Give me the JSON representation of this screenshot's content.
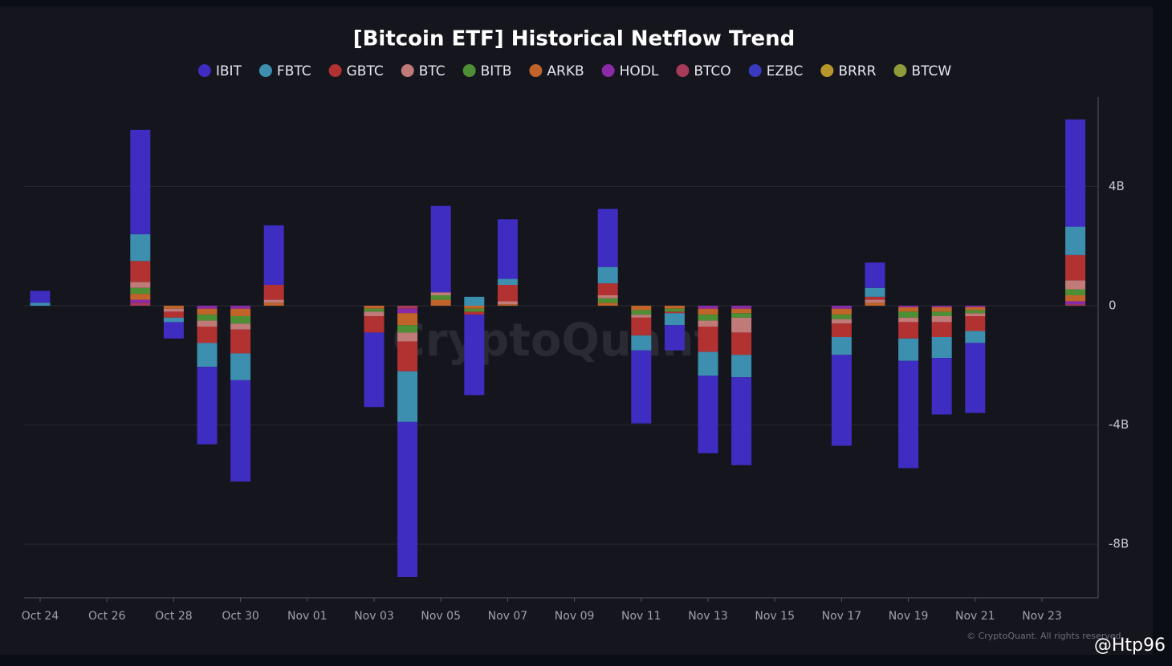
{
  "chart_data": {
    "type": "stacked-bar",
    "title": "[Bitcoin ETF] Historical Netflow Trend",
    "categories": [
      "Oct 24",
      null,
      "Oct 26",
      null,
      "Oct 28",
      null,
      "Oct 30",
      null,
      "Nov 01",
      null,
      "Nov 03",
      null,
      "Nov 05",
      null,
      "Nov 07",
      null,
      "Nov 09",
      null,
      "Nov 11",
      null,
      "Nov 13",
      null,
      "Nov 15",
      null,
      "Nov 17",
      null,
      "Nov 19",
      null,
      "Nov 21",
      null,
      "Nov 23",
      null
    ],
    "series": [
      {
        "name": "IBIT",
        "color": "#3f2cc0",
        "values": [
          0.4,
          null,
          null,
          3.5,
          -0.55,
          -2.6,
          -3.4,
          2.0,
          null,
          null,
          -2.5,
          -5.2,
          2.9,
          -2.7,
          2.0,
          null,
          null,
          1.95,
          -2.45,
          -0.85,
          -2.6,
          -2.95,
          null,
          null,
          -3.05,
          0.85,
          -3.6,
          -1.9,
          -2.35,
          null,
          null,
          3.6
        ]
      },
      {
        "name": "FBTC",
        "color": "#3d8fb0",
        "values": [
          0.1,
          null,
          null,
          0.9,
          -0.15,
          -0.8,
          -0.9,
          0,
          null,
          null,
          0,
          -1.7,
          0,
          0.3,
          0.2,
          null,
          null,
          0.55,
          -0.5,
          -0.4,
          -0.8,
          -0.75,
          null,
          null,
          -0.6,
          0.3,
          -0.75,
          -0.7,
          -0.4,
          null,
          null,
          0.95
        ]
      },
      {
        "name": "GBTC",
        "color": "#b23232",
        "values": [
          0,
          null,
          null,
          0.7,
          -0.2,
          -0.55,
          -0.8,
          0.5,
          null,
          null,
          -0.55,
          -1.0,
          0,
          -0.1,
          0.55,
          null,
          null,
          0.4,
          -0.6,
          -0.05,
          -0.85,
          -0.75,
          null,
          null,
          -0.45,
          0.1,
          -0.55,
          -0.5,
          -0.5,
          null,
          null,
          0.85
        ]
      },
      {
        "name": "BTC",
        "color": "#c07a78",
        "values": [
          0,
          null,
          null,
          0.2,
          -0.1,
          -0.2,
          -0.2,
          0.1,
          null,
          null,
          -0.15,
          -0.3,
          0.1,
          0,
          0.1,
          null,
          null,
          0.1,
          -0.1,
          0,
          -0.2,
          -0.5,
          null,
          null,
          -0.15,
          0.1,
          -0.15,
          -0.2,
          -0.1,
          null,
          null,
          0.3
        ]
      },
      {
        "name": "BITB",
        "color": "#4e8f35",
        "values": [
          0,
          null,
          null,
          0.2,
          0,
          -0.2,
          -0.25,
          0,
          null,
          null,
          -0.1,
          -0.25,
          0.15,
          -0.1,
          0,
          null,
          null,
          0.15,
          -0.15,
          -0.1,
          -0.2,
          -0.15,
          null,
          null,
          -0.15,
          0,
          -0.2,
          -0.15,
          -0.1,
          null,
          null,
          0.2
        ]
      },
      {
        "name": "ARKB",
        "color": "#c0642a",
        "values": [
          0,
          null,
          null,
          0.2,
          -0.1,
          -0.2,
          -0.25,
          0.1,
          null,
          null,
          -0.1,
          -0.4,
          0.2,
          -0.1,
          0.05,
          null,
          null,
          0.1,
          -0.15,
          -0.1,
          -0.2,
          -0.15,
          null,
          null,
          -0.2,
          0.1,
          -0.15,
          -0.15,
          -0.1,
          null,
          null,
          0.2
        ]
      },
      {
        "name": "HODL",
        "color": "#8a2aa8",
        "values": [
          0,
          null,
          null,
          0.1,
          0,
          -0.1,
          -0.1,
          0,
          null,
          null,
          0,
          -0.15,
          0,
          0,
          0,
          null,
          null,
          0,
          0,
          0,
          -0.1,
          -0.1,
          null,
          null,
          -0.1,
          0,
          -0.05,
          -0.05,
          -0.05,
          null,
          null,
          0.1
        ]
      },
      {
        "name": "BTCO",
        "color": "#a83a5a",
        "values": [
          0,
          null,
          null,
          0.1,
          0,
          0,
          0,
          0,
          null,
          null,
          0,
          -0.1,
          0,
          0,
          0,
          null,
          null,
          0,
          0,
          0,
          0,
          0,
          null,
          null,
          0,
          0,
          0,
          0,
          0,
          null,
          null,
          0.05
        ]
      },
      {
        "name": "EZBC",
        "color": "#3a3ac0",
        "values": [
          0,
          null,
          null,
          0,
          0,
          0,
          0,
          0,
          null,
          null,
          0,
          0,
          0,
          0,
          0,
          null,
          null,
          0,
          0,
          0,
          0,
          0,
          null,
          null,
          0,
          0,
          0,
          0,
          0,
          null,
          null,
          0
        ]
      },
      {
        "name": "BRRR",
        "color": "#b8962a",
        "values": [
          0,
          null,
          null,
          0,
          0,
          0,
          0,
          0,
          null,
          null,
          0,
          0,
          0,
          0,
          0,
          null,
          null,
          0,
          0,
          0,
          0,
          0,
          null,
          null,
          0,
          0,
          0,
          0,
          0,
          null,
          null,
          0
        ]
      },
      {
        "name": "BTCW",
        "color": "#8f9a3a",
        "values": [
          0,
          null,
          null,
          0,
          0,
          0,
          0,
          0,
          null,
          null,
          0,
          0,
          0,
          0,
          0,
          null,
          null,
          0,
          0,
          0,
          0,
          0,
          null,
          null,
          0,
          0,
          0,
          0,
          0,
          null,
          null,
          0
        ]
      }
    ],
    "ylim": [
      -9.8,
      7
    ],
    "yticks": [
      {
        "value": -8,
        "label": "-8B"
      },
      {
        "value": -4,
        "label": "-4B"
      },
      0,
      {
        "value": 4,
        "label": "4B"
      }
    ],
    "grid": true,
    "watermark": "CryptoQuant",
    "copyright": "© CryptoQuant. All rights reserved.",
    "credit": "@Htp96"
  }
}
